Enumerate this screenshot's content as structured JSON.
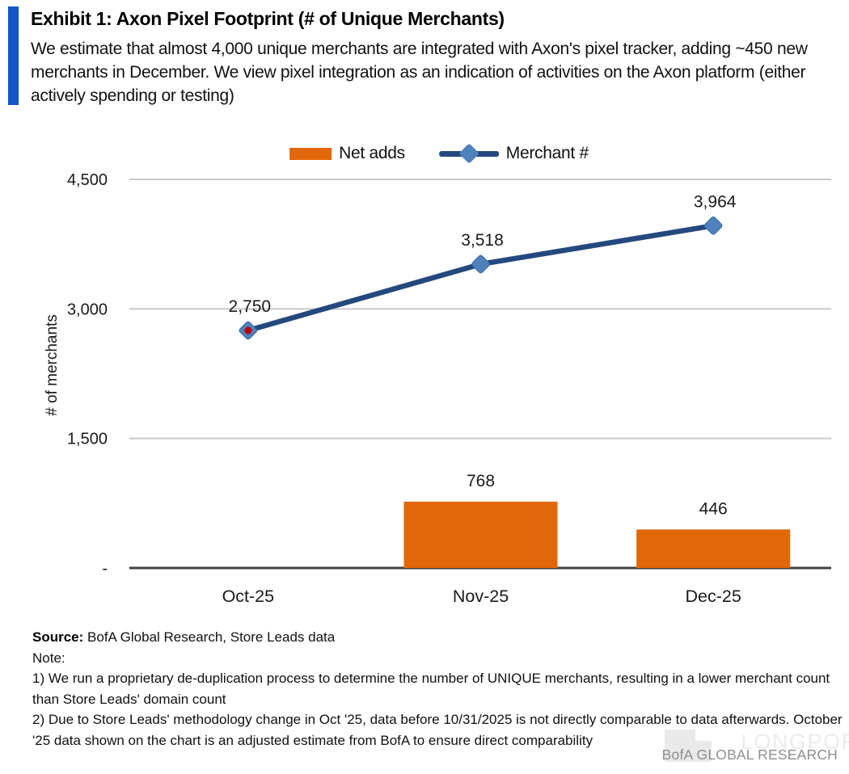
{
  "header": {
    "title": "Exhibit 1: Axon Pixel Footprint (# of Unique Merchants)",
    "subtitle": "We estimate that almost 4,000 unique merchants are integrated with Axon's pixel tracker, adding ~450 new merchants in December. We view pixel integration as an indication of activities on the Axon platform (either actively spending or testing)",
    "accent_color": "#1157C8"
  },
  "chart_data": {
    "type": "combo",
    "categories": [
      "Oct-25",
      "Nov-25",
      "Dec-25"
    ],
    "series": [
      {
        "name": "Net adds",
        "type": "bar",
        "color": "#E26709",
        "values": [
          null,
          768,
          446
        ]
      },
      {
        "name": "Merchant #",
        "type": "line",
        "color": "#24497E",
        "marker_color": "#4F81BD",
        "values": [
          2750,
          3518,
          3964
        ],
        "highlight_point": {
          "index": 0,
          "dot_color": "#C00000"
        }
      }
    ],
    "data_labels": {
      "line": [
        "2,750",
        "3,518",
        "3,964"
      ],
      "bar": [
        "",
        "768",
        "446"
      ]
    },
    "xlabel": "",
    "ylabel": "# of merchants",
    "ylim": [
      0,
      4500
    ],
    "yticks": [
      {
        "value": 4500,
        "label": "4,500"
      },
      {
        "value": 3000,
        "label": "3,000"
      },
      {
        "value": 1500,
        "label": "1,500"
      },
      {
        "value": 0,
        "label": "-"
      }
    ],
    "grid": true,
    "gridline_color": "#C8C8C8",
    "axis_line_color": "#404040",
    "legend_position": "top"
  },
  "footer": {
    "source_label": "Source:",
    "source_text": " BofA Global Research, Store Leads data",
    "note_label": "Note:",
    "note1": "1) We run a proprietary de-duplication process to determine the number of UNIQUE merchants, resulting in a lower merchant count than Store Leads' domain count",
    "note2": "2) Due to Store Leads' methodology change in Oct '25, data before 10/31/2025 is not directly comparable to data afterwards. October '25 data shown on the chart is an adjusted estimate from BofA to ensure direct comparability",
    "brand": "BofA GLOBAL RESEARCH",
    "watermark": "LONGPORT"
  }
}
